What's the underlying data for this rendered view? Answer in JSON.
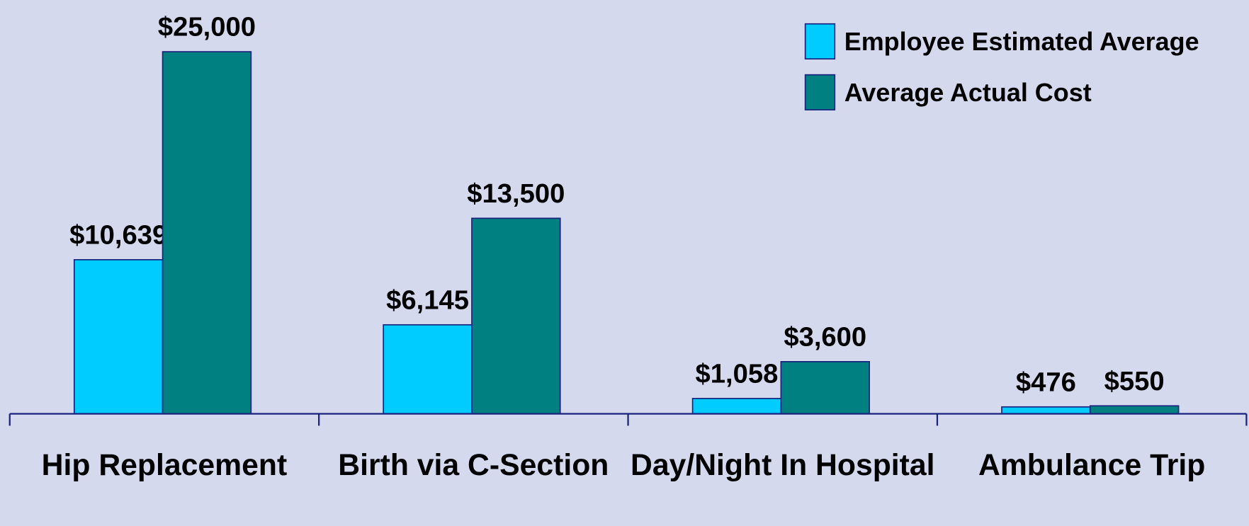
{
  "chart_data": {
    "type": "bar",
    "categories": [
      "Hip Replacement",
      "Birth via C-Section",
      "Day/Night In Hospital",
      "Ambulance Trip"
    ],
    "series": [
      {
        "name": "Employee Estimated Average",
        "color": "#00ccff",
        "values": [
          10639,
          6145,
          1058,
          476
        ],
        "value_labels": [
          "$10,639",
          "$6,145",
          "$1,058",
          "$476"
        ]
      },
      {
        "name": "Average Actual Cost",
        "color": "#008080",
        "values": [
          25000,
          13500,
          3600,
          550
        ],
        "value_labels": [
          "$25,000",
          "$13,500",
          "$3,600",
          "$550"
        ]
      }
    ],
    "legend": "top-right"
  }
}
